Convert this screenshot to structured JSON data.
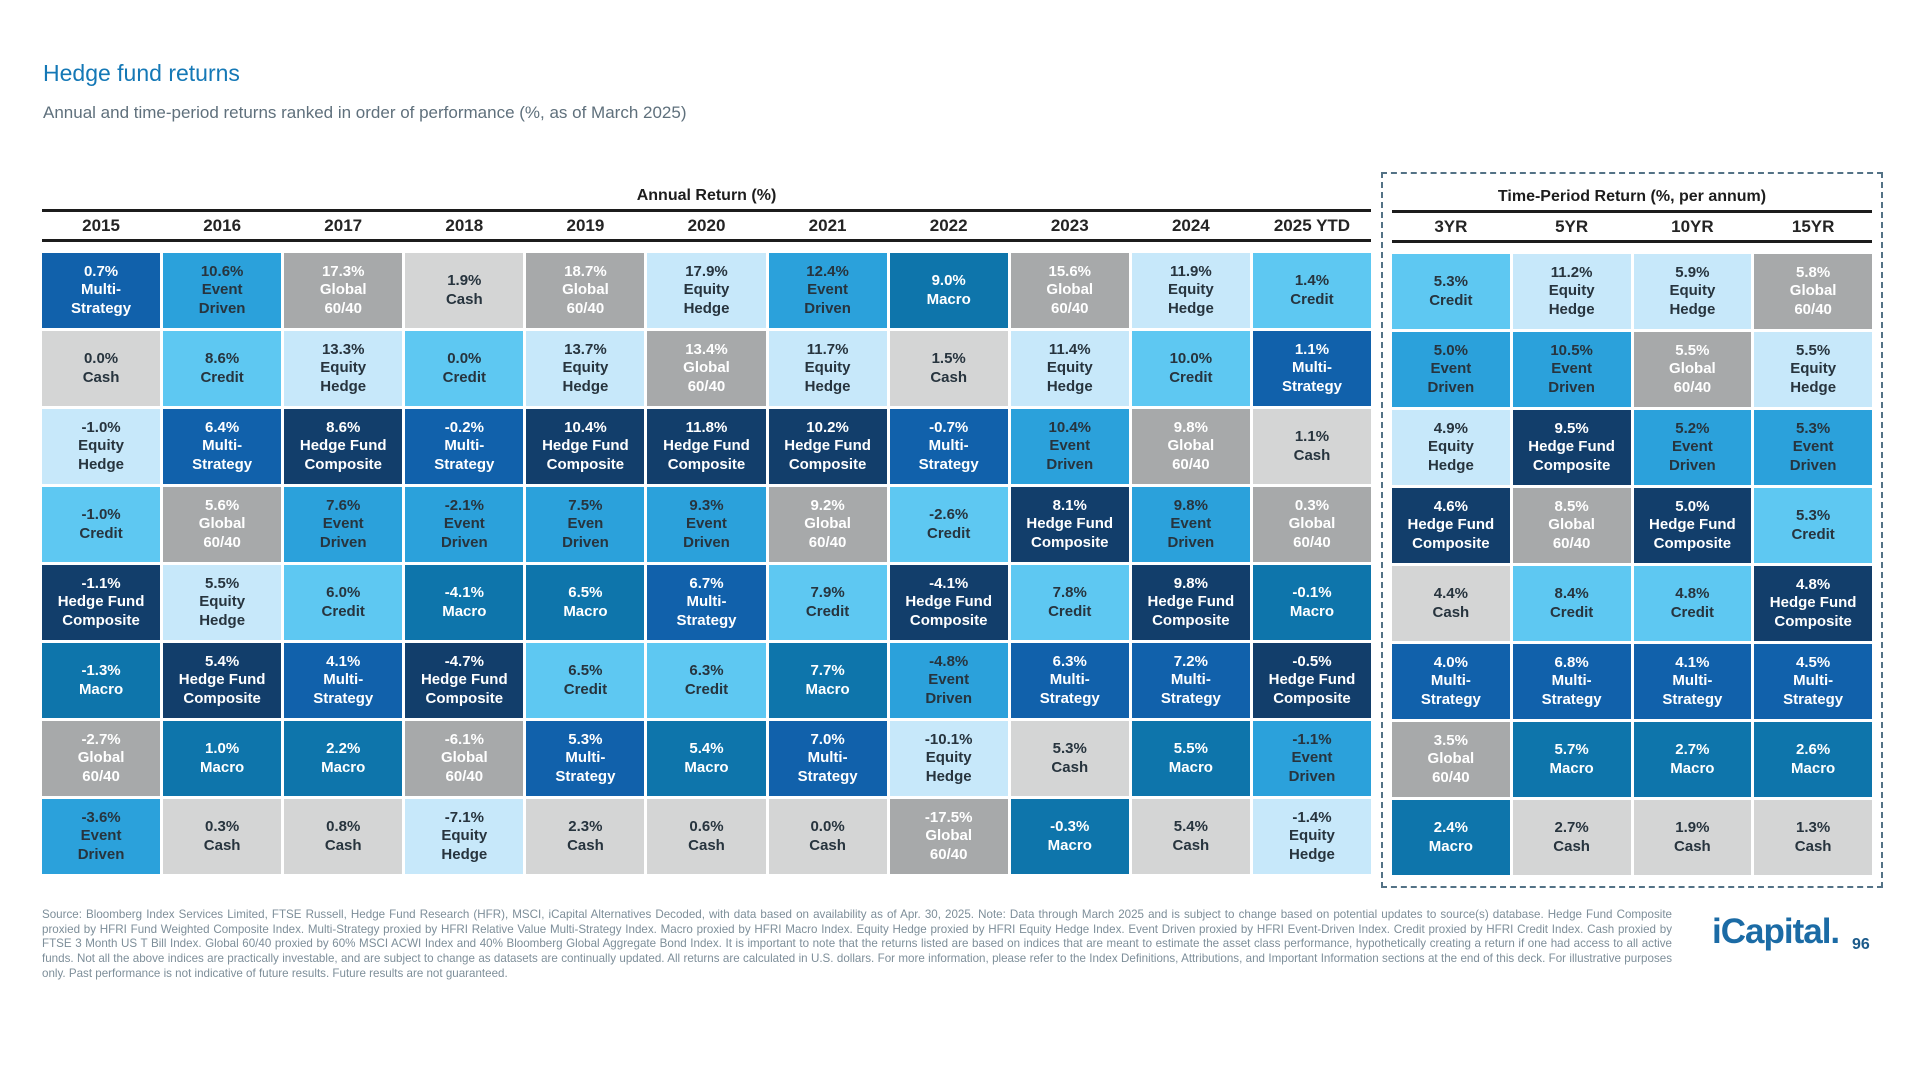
{
  "page": {
    "title": "Hedge fund returns",
    "subtitle": "Annual and time-period returns ranked in order of performance (%, as of March 2025)",
    "footer": "Source: Bloomberg Index Services Limited, FTSE Russell, Hedge Fund Research (HFR), MSCI, iCapital Alternatives Decoded, with data based on availability as of Apr. 30, 2025. Note: Data through March 2025 and is subject to change based on potential updates to source(s) database. Hedge Fund Composite proxied by HFRI Fund Weighted Composite Index. Multi-Strategy proxied by HFRI Relative Value Multi-Strategy Index. Macro proxied by HFRI Macro Index. Equity Hedge proxied by HFRI Equity Hedge Index. Event Driven proxied by HFRI Event-Driven Index. Credit proxied by HFRI Credit Index. Cash proxied by FTSE 3 Month US T Bill Index. Global 60/40 proxied by 60% MSCI ACWI Index and 40% Bloomberg Global Aggregate Bond Index. It is important to note that the returns listed are based on indices that are meant to estimate the asset class performance, hypothetically creating a return if one had access to all active funds. Not all the above indices are practically investable, and are subject to change as datasets are continually updated. All returns are calculated in U.S. dollars. For more information, please refer to the Index Definitions, Attributions, and Important Information sections at the end of this deck. For illustrative purposes only. Past performance is not indicative of future results. Future results are not guaranteed.",
    "logo_text": "iCapital",
    "logo_dot": ".",
    "page_number": "96"
  },
  "chart_data": {
    "type": "table",
    "title": "Hedge fund returns",
    "subtitle": "Annual and time-period returns ranked in order of performance (%, as of March 2025)",
    "strategy_colors": {
      "Multi-Strategy": {
        "bg": "#1161ab",
        "text": "#ffffff"
      },
      "Cash": {
        "bg": "#d4d5d5",
        "text": "#27343e"
      },
      "Equity Hedge": {
        "bg": "#c7e8fa",
        "text": "#27343e"
      },
      "Credit": {
        "bg": "#5ec8f2",
        "text": "#27343e"
      },
      "Hedge Fund Composite": {
        "bg": "#123e6b",
        "text": "#ffffff"
      },
      "Macro": {
        "bg": "#0e75ab",
        "text": "#ffffff"
      },
      "Global 60/40": {
        "bg": "#a7a9aa",
        "text": "#ffffff"
      },
      "Event Driven": {
        "bg": "#2ba1db",
        "text": "#27343e"
      },
      "Even Driven": {
        "bg": "#2ba1db",
        "text": "#27343e"
      }
    },
    "annual": {
      "header": "Annual Return (%)",
      "columns": [
        {
          "label": "2015",
          "cells": [
            {
              "value": "0.7%",
              "strategy": "Multi-Strategy"
            },
            {
              "value": "0.0%",
              "strategy": "Cash"
            },
            {
              "value": "-1.0%",
              "strategy": "Equity Hedge"
            },
            {
              "value": "-1.0%",
              "strategy": "Credit"
            },
            {
              "value": "-1.1%",
              "strategy": "Hedge Fund Composite"
            },
            {
              "value": "-1.3%",
              "strategy": "Macro"
            },
            {
              "value": "-2.7%",
              "strategy": "Global 60/40"
            },
            {
              "value": "-3.6%",
              "strategy": "Event Driven"
            }
          ]
        },
        {
          "label": "2016",
          "cells": [
            {
              "value": "10.6%",
              "strategy": "Event Driven"
            },
            {
              "value": "8.6%",
              "strategy": "Credit"
            },
            {
              "value": "6.4%",
              "strategy": "Multi-Strategy"
            },
            {
              "value": "5.6%",
              "strategy": "Global 60/40"
            },
            {
              "value": "5.5%",
              "strategy": "Equity Hedge"
            },
            {
              "value": "5.4%",
              "strategy": "Hedge Fund Composite"
            },
            {
              "value": "1.0%",
              "strategy": "Macro"
            },
            {
              "value": "0.3%",
              "strstrategy": "",
              "strategy": "Cash"
            }
          ]
        },
        {
          "label": "2017",
          "cells": [
            {
              "value": "17.3%",
              "strategy": "Global 60/40"
            },
            {
              "value": "13.3%",
              "strategy": "Equity Hedge"
            },
            {
              "value": "8.6%",
              "strategy": "Hedge Fund Composite"
            },
            {
              "value": "7.6%",
              "strategy": "Event Driven"
            },
            {
              "value": "6.0%",
              "strategy": "Credit"
            },
            {
              "value": "4.1%",
              "strategy": "Multi-Strategy"
            },
            {
              "value": "2.2%",
              "strategy": "Macro"
            },
            {
              "value": "0.8%",
              "strategy": "Cash"
            }
          ]
        },
        {
          "label": "2018",
          "cells": [
            {
              "value": "1.9%",
              "strategy": "Cash"
            },
            {
              "value": "0.0%",
              "strategy": "Credit"
            },
            {
              "value": "-0.2%",
              "strategy": "Multi-Strategy"
            },
            {
              "value": "-2.1%",
              "strategy": "Event Driven"
            },
            {
              "value": "-4.1%",
              "strategy": "Macro"
            },
            {
              "value": "-4.7%",
              "strategy": "Hedge Fund Composite"
            },
            {
              "value": "-6.1%",
              "strategy": "Global 60/40"
            },
            {
              "value": "-7.1%",
              "strategy": "Equity Hedge"
            }
          ]
        },
        {
          "label": "2019",
          "cells": [
            {
              "value": "18.7%",
              "strategy": "Global 60/40"
            },
            {
              "value": "13.7%",
              "strategy": "Equity Hedge"
            },
            {
              "value": "10.4%",
              "strategy": "Hedge Fund Composite"
            },
            {
              "value": "7.5%",
              "strategy": "Even Driven"
            },
            {
              "value": "6.5%",
              "strategy": "Macro"
            },
            {
              "value": "6.5%",
              "strategy": "Credit"
            },
            {
              "value": "5.3%",
              "strategy": "Multi-Strategy"
            },
            {
              "value": "2.3%",
              "strategy": "Cash"
            }
          ]
        },
        {
          "label": "2020",
          "cells": [
            {
              "value": "17.9%",
              "strategy": "Equity Hedge"
            },
            {
              "value": "13.4%",
              "strategy": "Global 60/40"
            },
            {
              "value": "11.8%",
              "strategy": "Hedge Fund Composite"
            },
            {
              "value": "9.3%",
              "strategy": "Event Driven"
            },
            {
              "value": "6.7%",
              "strategy": "Multi-Strategy"
            },
            {
              "value": "6.3%",
              "strategy": "Credit"
            },
            {
              "value": "5.4%",
              "strategy": "Macro"
            },
            {
              "value": "0.6%",
              "strategy": "Cash"
            }
          ]
        },
        {
          "label": "2021",
          "cells": [
            {
              "value": "12.4%",
              "strategy": "Event Driven"
            },
            {
              "value": "11.7%",
              "strategy": "Equity Hedge"
            },
            {
              "value": "10.2%",
              "strategy": "Hedge Fund Composite"
            },
            {
              "value": "9.2%",
              "strategy": "Global 60/40"
            },
            {
              "value": "7.9%",
              "strategy": "Credit"
            },
            {
              "value": "7.7%",
              "strategy": "Macro"
            },
            {
              "value": "7.0%",
              "strategy": "Multi-Strategy"
            },
            {
              "value": "0.0%",
              "strategy": "Cash"
            }
          ]
        },
        {
          "label": "2022",
          "cells": [
            {
              "value": "9.0%",
              "strategy": "Macro"
            },
            {
              "value": "1.5%",
              "strategy": "Cash"
            },
            {
              "value": "-0.7%",
              "strategy": "Multi-Strategy"
            },
            {
              "value": "-2.6%",
              "strategy": "Credit"
            },
            {
              "value": "-4.1%",
              "strategy": "Hedge Fund Composite"
            },
            {
              "value": "-4.8%",
              "strategy": "Event Driven"
            },
            {
              "value": "-10.1%",
              "strategy": "Equity Hedge"
            },
            {
              "value": "-17.5%",
              "strategy": "Global 60/40"
            }
          ]
        },
        {
          "label": "2023",
          "cells": [
            {
              "value": "15.6%",
              "strategy": "Global 60/40"
            },
            {
              "value": "11.4%",
              "strategy": "Equity Hedge"
            },
            {
              "value": "10.4%",
              "strategy": "Event Driven"
            },
            {
              "value": "8.1%",
              "strategy": "Hedge Fund Composite"
            },
            {
              "value": "7.8%",
              "strategy": "Credit"
            },
            {
              "value": "6.3%",
              "strategy": "Multi-Strategy"
            },
            {
              "value": "5.3%",
              "strategy": "Cash"
            },
            {
              "value": "-0.3%",
              "strategy": "Macro"
            }
          ]
        },
        {
          "label": "2024",
          "cells": [
            {
              "value": "11.9%",
              "strategy": "Equity Hedge"
            },
            {
              "value": "10.0%",
              "strategy": "Credit"
            },
            {
              "value": "9.8%",
              "strategy": "Global 60/40"
            },
            {
              "value": "9.8%",
              "strategy": "Event Driven"
            },
            {
              "value": "9.8%",
              "strategy": "Hedge Fund Composite"
            },
            {
              "value": "7.2%",
              "strategy": "Multi-Strategy"
            },
            {
              "value": "5.5%",
              "strategy": "Macro"
            },
            {
              "value": "5.4%",
              "strategy": "Cash"
            }
          ]
        },
        {
          "label": "2025 YTD",
          "cells": [
            {
              "value": "1.4%",
              "strategy": "Credit"
            },
            {
              "value": "1.1%",
              "strategy": "Multi-Strategy"
            },
            {
              "value": "1.1%",
              "strategy": "Cash"
            },
            {
              "value": "0.3%",
              "strategy": "Global 60/40"
            },
            {
              "value": "-0.1%",
              "strategy": "Macro"
            },
            {
              "value": "-0.5%",
              "strategy": "Hedge Fund Composite"
            },
            {
              "value": "-1.1%",
              "strategy": "Event Driven"
            },
            {
              "value": "-1.4%",
              "strategy": "Equity Hedge"
            }
          ]
        }
      ]
    },
    "time_period": {
      "header": "Time-Period Return (%, per annum)",
      "columns": [
        {
          "label": "3YR",
          "cells": [
            {
              "value": "5.3%",
              "strategy": "Credit"
            },
            {
              "value": "5.0%",
              "strategy": "Event Driven"
            },
            {
              "value": "4.9%",
              "strategy": "Equity Hedge"
            },
            {
              "value": "4.6%",
              "strategy": "Hedge Fund Composite"
            },
            {
              "value": "4.4%",
              "strategy": "Cash"
            },
            {
              "value": "4.0%",
              "strategy": "Multi-Strategy"
            },
            {
              "value": "3.5%",
              "strategy": "Global 60/40"
            },
            {
              "value": "2.4%",
              "strategy": "Macro"
            }
          ]
        },
        {
          "label": "5YR",
          "cells": [
            {
              "value": "11.2%",
              "strategy": "Equity Hedge"
            },
            {
              "value": "10.5%",
              "strategy": "Event Driven"
            },
            {
              "value": "9.5%",
              "strategy": "Hedge Fund Composite"
            },
            {
              "value": "8.5%",
              "strategy": "Global 60/40"
            },
            {
              "value": "8.4%",
              "strategy": "Credit"
            },
            {
              "value": "6.8%",
              "strategy": "Multi-Strategy"
            },
            {
              "value": "5.7%",
              "strategy": "Macro"
            },
            {
              "value": "2.7%",
              "strategy": "Cash"
            }
          ]
        },
        {
          "label": "10YR",
          "cells": [
            {
              "value": "5.9%",
              "strategy": "Equity Hedge"
            },
            {
              "value": "5.5%",
              "strategy": "Global 60/40"
            },
            {
              "value": "5.2%",
              "strategy": "Event Driven"
            },
            {
              "value": "5.0%",
              "strategy": "Hedge Fund Composite"
            },
            {
              "value": "4.8%",
              "strategy": "Credit"
            },
            {
              "value": "4.1%",
              "strategy": "Multi-Strategy"
            },
            {
              "value": "2.7%",
              "strategy": "Macro"
            },
            {
              "value": "1.9%",
              "strategy": "Cash"
            }
          ]
        },
        {
          "label": "15YR",
          "cells": [
            {
              "value": "5.8%",
              "strategy": "Global 60/40"
            },
            {
              "value": "5.5%",
              "strategy": "Equity Hedge"
            },
            {
              "value": "5.3%",
              "strategy": "Event Driven"
            },
            {
              "value": "5.3%",
              "strategy": "Credit"
            },
            {
              "value": "4.8%",
              "strategy": "Hedge Fund Composite"
            },
            {
              "value": "4.5%",
              "strategy": "Multi-Strategy"
            },
            {
              "value": "2.6%",
              "strategy": "Macro"
            },
            {
              "value": "1.3%",
              "strategy": "Cash"
            }
          ]
        }
      ]
    }
  }
}
